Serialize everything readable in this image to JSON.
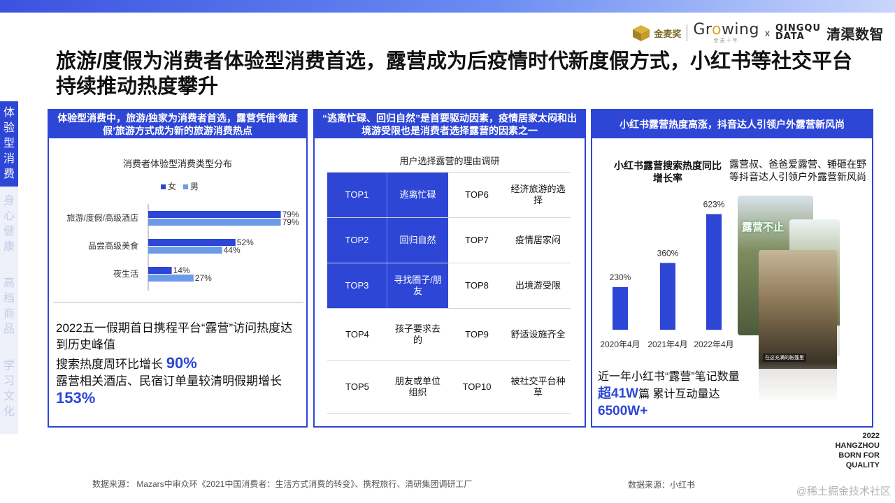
{
  "title": "旅游/度假为消费者体验型消费首选，露营成为后疫情时代新度假方式，小红书等社交平台持续推动热度攀升",
  "logos": {
    "jmj": "金麦奖",
    "growing_pre": "Gr",
    "growing_o": "o",
    "growing_post": "wing",
    "growing_sub": "金麦十年",
    "x": "x",
    "qd_line1": "QINGQU",
    "qd_line2": "DATA",
    "qq": "清渠数智"
  },
  "sidenav": {
    "items": [
      {
        "label": "体验型消费",
        "active": true
      },
      {
        "label": "身心健康",
        "active": false
      },
      {
        "label": "高档商品",
        "active": false
      },
      {
        "label": "学习文化",
        "active": false
      }
    ]
  },
  "panel1": {
    "header": "体验型消费中，旅游/独家为消费者首选，露营凭借‘微度假’旅游方式成为新的旅游消费热点",
    "stat_main": "2022五一假期首日携程平台“露营”访问热度达到历史峰值",
    "stat2_text": "搜索热度周环比增长",
    "stat2_value": "90%",
    "stat3_text": "露营相关酒店、民宿订单量较清明假期增长",
    "stat3_value": "153%"
  },
  "panel2": {
    "header": "“逃离忙碌、回归自然”是首要驱动因素，疫情居家太闷和出境游受限也是消费者选择露营的因素之一",
    "table_title": "用户选择露营的理由调研",
    "rows": [
      {
        "rank_a": "TOP1",
        "reason_a": "逃离忙碌",
        "rank_b": "TOP6",
        "reason_b": "经济旅游的选择"
      },
      {
        "rank_a": "TOP2",
        "reason_a": "回归自然",
        "rank_b": "TOP7",
        "reason_b": "疫情居家闷"
      },
      {
        "rank_a": "TOP3",
        "reason_a": "寻找圈子/朋友",
        "rank_b": "TOP8",
        "reason_b": "出境游受限"
      },
      {
        "rank_a": "TOP4",
        "reason_a": "孩子要求去的",
        "rank_b": "TOP9",
        "reason_b": "舒适设施齐全"
      },
      {
        "rank_a": "TOP5",
        "reason_a": "朋友或单位组织",
        "rank_b": "TOP10",
        "reason_b": "被社交平台种草"
      }
    ]
  },
  "panel3": {
    "header": "小红书露营热度高涨，抖音达人引领户外露营新风尚",
    "right_note": "露营叔、爸爸爱露营、锤砸在野等抖音达人引领户外露营新风尚",
    "stat1": "近一年小红书“露营”笔记数量",
    "stat2_prefix": "超",
    "stat2_value": "41W",
    "stat2_text": "篇  累计互动量达",
    "stat3_value": "6500W+",
    "shot_tag": "露营不止",
    "shot_caption": "在这充满的帐篷里"
  },
  "chart_data": [
    {
      "type": "bar",
      "orientation": "horizontal",
      "title": "消费者体验型消费类型分布",
      "categories": [
        "旅游/度假/高级酒店",
        "品尝高级美食",
        "夜生活"
      ],
      "series": [
        {
          "name": "女",
          "values": [
            79,
            52,
            14
          ],
          "labels": [
            "79%",
            "52%",
            "14%"
          ],
          "color": "#2d46d6"
        },
        {
          "name": "男",
          "values": [
            79,
            44,
            27
          ],
          "labels": [
            "79%",
            "44%",
            "27%"
          ],
          "color": "#6b9ae8"
        }
      ],
      "xlim": [
        0,
        100
      ],
      "legend": "top"
    },
    {
      "type": "bar",
      "title": "小红书露营搜索热度同比增长率",
      "categories": [
        "2020年4月",
        "2021年4月",
        "2022年4月"
      ],
      "values": [
        230,
        360,
        623
      ],
      "labels": [
        "230%",
        "360%",
        "623%"
      ],
      "color": "#2d46d6",
      "ylim": [
        0,
        700
      ]
    }
  ],
  "footer": {
    "source1": "数据来源：  Mazars中审众环《2021中国消费者：生活方式消费的转变》、携程旅行、清研集团调研工厂",
    "source2": "数据来源：小红书",
    "brand1": "2022",
    "brand2": "HANGZHOU",
    "brand3": "BORN FOR",
    "brand4": "QUALITY",
    "watermark": "@稀土掘金技术社区"
  }
}
